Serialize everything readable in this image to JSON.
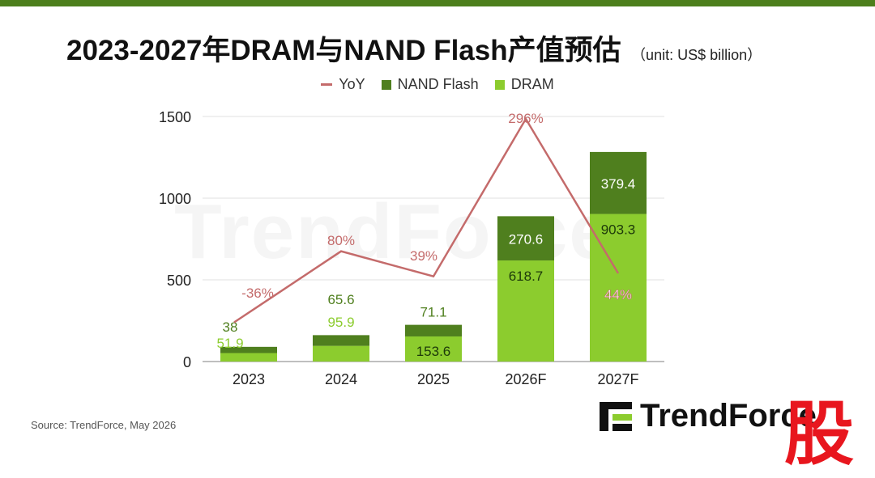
{
  "header": {
    "title": "2023-2027年DRAM与NAND Flash产值预估",
    "unit": "（unit: US$ billion）"
  },
  "legend": [
    {
      "label": "YoY",
      "type": "line",
      "color": "#c46b6b"
    },
    {
      "label": "NAND Flash",
      "type": "box",
      "color": "#4f7f1e"
    },
    {
      "label": "DRAM",
      "type": "box",
      "color": "#8ccc2e"
    }
  ],
  "chart_data": {
    "type": "bar",
    "stacked": true,
    "categories": [
      "2023",
      "2024",
      "2025",
      "2026F",
      "2027F"
    ],
    "series": [
      {
        "name": "DRAM",
        "values": [
          51.9,
          95.9,
          153.6,
          618.7,
          903.3
        ],
        "color": "#8ccc2e"
      },
      {
        "name": "NAND Flash",
        "values": [
          38,
          65.6,
          71.1,
          270.6,
          379.4
        ],
        "color": "#4f7f1e"
      },
      {
        "name": "YoY",
        "type": "line",
        "values": [
          -36,
          80,
          39,
          296,
          44
        ],
        "labels": [
          "-36%",
          "80%",
          "39%",
          "296%",
          "44%"
        ],
        "color": "#c46b6b"
      }
    ],
    "yticks": [
      0,
      500,
      1000,
      1500
    ],
    "ylim": [
      0,
      1500
    ],
    "yoy_range": [
      -100,
      300
    ],
    "grid": true,
    "legend_position": "top-center"
  },
  "watermark": "TrendForce",
  "footer": {
    "source": "Source: TrendForce, May 2026",
    "brand": "TrendForce",
    "stamp": "股"
  }
}
